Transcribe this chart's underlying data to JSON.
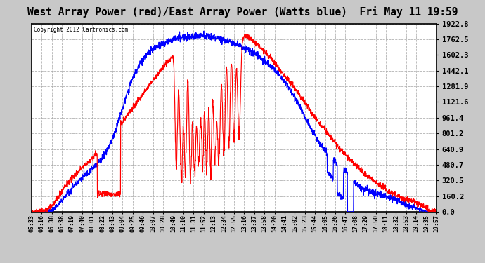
{
  "title": "West Array Power (red)/East Array Power (Watts blue)  Fri May 11 19:59",
  "copyright": "Copyright 2012 Cartronics.com",
  "ylabel_right": [
    "1922.8",
    "1762.5",
    "1602.3",
    "1442.1",
    "1281.9",
    "1121.6",
    "961.4",
    "801.2",
    "640.9",
    "480.7",
    "320.5",
    "160.2",
    "0.0"
  ],
  "ymax": 1922.8,
  "ymin": 0.0,
  "tick_labels": [
    "05:33",
    "06:16",
    "06:38",
    "06:38",
    "07:19",
    "07:40",
    "08:01",
    "08:22",
    "08:43",
    "09:04",
    "09:25",
    "09:46",
    "10:07",
    "10:28",
    "10:49",
    "11:10",
    "11:31",
    "11:52",
    "12:13",
    "12:34",
    "12:55",
    "13:16",
    "13:37",
    "13:58",
    "14:20",
    "14:41",
    "15:02",
    "15:23",
    "15:44",
    "16:05",
    "16:26",
    "16:47",
    "17:08",
    "17:29",
    "17:50",
    "18:11",
    "18:32",
    "18:53",
    "19:14",
    "19:35",
    "19:57"
  ]
}
